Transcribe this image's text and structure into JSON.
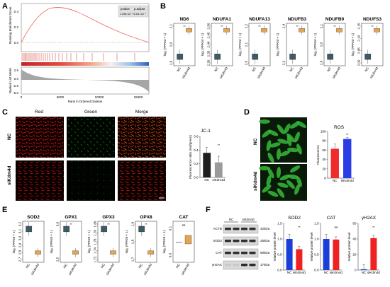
{
  "panels": {
    "A": {
      "label": "A",
      "ylabel_top": "Running Enrichment Score",
      "ylabel_bottom": "Ranked List Metric",
      "xlabel": "Rank in Ordered Dataset",
      "xticks": [
        "0",
        "5000",
        "10000",
        "15000"
      ],
      "yticks_top": [
        "0.4",
        "0.2",
        "0.0"
      ],
      "yticks_bottom": [
        "2.5",
        "0.0",
        "-2.5",
        "-5.0"
      ],
      "curve_label": "oxidative phosphorylation",
      "stats_headers": [
        "pvalue",
        "p.adjust"
      ],
      "stats_values": [
        "1.035×10⁻⁹",
        "3.311×10⁻⁷"
      ]
    },
    "B": {
      "label": "B",
      "ylabel": "log₂ (FPKM + 1)",
      "genes": [
        {
          "title": "ND6",
          "yticks": [
            "2.1",
            "2.0",
            "1.9"
          ],
          "sig": "**"
        },
        {
          "title": "NDUFA1",
          "yticks": [
            "2.50",
            "2.45",
            "2.40",
            "2.35",
            "2.30"
          ],
          "sig": "**"
        },
        {
          "title": "NDUFA13",
          "yticks": [
            "2.2",
            "2.1",
            "2.0"
          ],
          "sig": "**"
        },
        {
          "title": "NDUFB3",
          "yticks": [
            "2.4",
            "2.3"
          ],
          "sig": "**"
        },
        {
          "title": "NDUFB9",
          "yticks": [
            "2.1",
            "2.0",
            "1.9"
          ],
          "sig": "**"
        },
        {
          "title": "NDUFS3",
          "yticks": [
            "2.15",
            "2.10",
            "2.05",
            "2.00"
          ],
          "sig": "**"
        }
      ],
      "groups": [
        "NC",
        "siKdm4d"
      ]
    },
    "C": {
      "label": "C",
      "columns": [
        "Red",
        "Green",
        "Merge"
      ],
      "rows": [
        "NC",
        "siKdm4d"
      ],
      "bar_title": "JC-1",
      "bar_ylabel": "Fluorescence ratio (red/green)",
      "bar_yticks": [
        "0.6",
        "0.4",
        "0.2",
        "0.0"
      ],
      "bar_groups": [
        "NC",
        "siKdm4d"
      ],
      "bar_sig": "**"
    },
    "D": {
      "label": "D",
      "rows": [
        "NC",
        "siKdm4d"
      ],
      "bar_title": "ROS",
      "bar_ylabel": "Fluorescence",
      "bar_yticks": [
        "100",
        "80",
        "60",
        "40",
        "20",
        "0"
      ],
      "bar_groups": [
        "NC",
        "siKdm4d"
      ],
      "bar_sig": "**"
    },
    "E": {
      "label": "E",
      "ylabel": "log₂ (FPKM + 1)",
      "genes": [
        {
          "title": "SOD2",
          "yticks": [
            "3.2",
            "3.1",
            "3.0",
            "2.9",
            "2.8",
            "2.7"
          ],
          "sig": ""
        },
        {
          "title": "GPX1",
          "yticks": [
            "3.0",
            "2.5"
          ],
          "sig": "**"
        },
        {
          "title": "GPX3",
          "yticks": [
            "1.80",
            "1.78",
            "1.76",
            "1.74",
            "1.72"
          ],
          "sig": "**"
        },
        {
          "title": "GPX8",
          "yticks": [
            "1.9",
            "1.8",
            "1.7"
          ],
          "sig": "**"
        },
        {
          "title": "CAT",
          "yticks": [
            "0.1",
            "0.0"
          ],
          "sig": "ns"
        }
      ],
      "groups": [
        "NC",
        "siKdm4d"
      ]
    },
    "F": {
      "label": "F",
      "blot_groups": [
        "NC",
        "siKdm4d"
      ],
      "proteins": [
        {
          "name": "ACTB",
          "kda": "42kDa"
        },
        {
          "name": "SOD2",
          "kda": "25kDa"
        },
        {
          "name": "CAT",
          "kda": "60kDa"
        },
        {
          "name": "γH2AX",
          "kda": "17kDa"
        }
      ],
      "bar_ylabel": "relative protein level",
      "bars": [
        {
          "title": "SOD2",
          "yticks": [
            "1.5",
            "1.0",
            "0.5",
            "0.0"
          ],
          "sig": "**"
        },
        {
          "title": "CAT",
          "yticks": [
            "1.5",
            "1.0",
            "0.5",
            "0.0"
          ],
          "sig": "ns"
        },
        {
          "title": "γH2AX",
          "yticks": [
            "60",
            "40",
            "20",
            "0"
          ],
          "sig": "**"
        }
      ],
      "bar_groups": [
        "NC",
        "siKdm4d"
      ]
    }
  },
  "chart_data": [
    {
      "type": "bar",
      "title": "JC-1",
      "categories": [
        "NC",
        "siKdm4d"
      ],
      "values": [
        0.36,
        0.22
      ],
      "ylabel": "Fluorescence ratio (red/green)",
      "ylim": [
        0,
        0.6
      ]
    },
    {
      "type": "bar",
      "title": "ROS",
      "categories": [
        "NC",
        "siKdm4d"
      ],
      "values": [
        63,
        84
      ],
      "ylabel": "Fluorescence",
      "ylim": [
        0,
        100
      ]
    },
    {
      "type": "bar",
      "title": "SOD2",
      "categories": [
        "NC",
        "siKdm4d"
      ],
      "values": [
        1.0,
        0.67
      ],
      "ylabel": "relative protein level",
      "ylim": [
        0,
        1.5
      ]
    },
    {
      "type": "bar",
      "title": "CAT",
      "categories": [
        "NC",
        "siKdm4d"
      ],
      "values": [
        1.0,
        0.98
      ],
      "ylabel": "relative protein level",
      "ylim": [
        0,
        1.5
      ]
    },
    {
      "type": "bar",
      "title": "γH2AX",
      "categories": [
        "NC",
        "siKdm4d"
      ],
      "values": [
        1,
        41
      ],
      "ylabel": "relative protein level",
      "ylim": [
        0,
        60
      ]
    }
  ],
  "colors": {
    "nc_box": "#3d5a66",
    "kd_box": "#e3a456",
    "bar_nc": "#1f1f1f",
    "bar_kd": "#9a9a9a",
    "ros_nc": "#ef2b2b",
    "ros_kd": "#2b3ee6",
    "f_nc": "#1a3fd8",
    "f_kd": "#ee2222",
    "gsea_curve": "#ef6e62"
  }
}
